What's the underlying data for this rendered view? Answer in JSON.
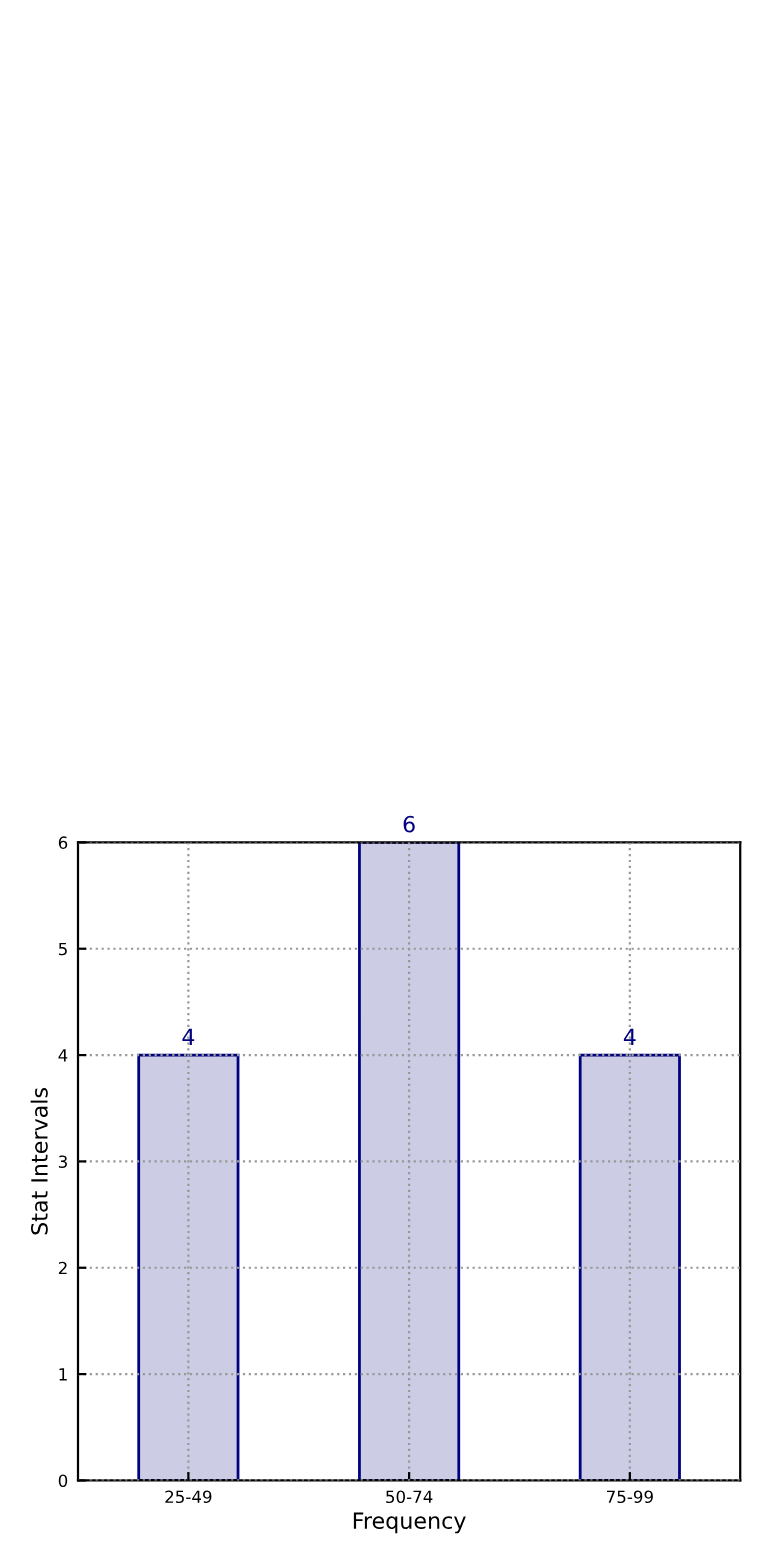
{
  "chart_data": {
    "type": "bar",
    "xlabel": "Frequency",
    "ylabel": "Stat Intervals",
    "categories": [
      "25-49",
      "50-74",
      "75-99"
    ],
    "values": [
      4,
      6,
      4
    ],
    "color": "#cccce4",
    "ylim": [
      0,
      6
    ],
    "yticks": [
      0,
      1,
      2,
      3,
      4,
      5,
      6
    ],
    "grid": true,
    "data_labels": true
  }
}
